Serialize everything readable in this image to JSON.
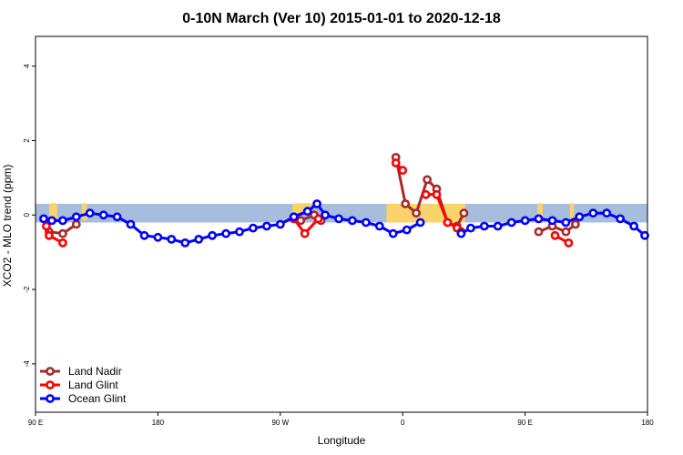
{
  "chart_data": {
    "type": "line",
    "title": "0-10N March (Ver 10)   2015-01-01 to 2020-12-18",
    "xlabel": "Longitude",
    "ylabel": "XCO2 - MLO trend (ppm)",
    "xlim": [
      -90,
      360
    ],
    "ylim": [
      -5.3,
      4.8
    ],
    "x_ticks": [
      {
        "value": -90,
        "label": "90 E"
      },
      {
        "value": 0,
        "label": "180"
      },
      {
        "value": 90,
        "label": "90 W"
      },
      {
        "value": 180,
        "label": "0"
      },
      {
        "value": 270,
        "label": "90 E"
      },
      {
        "value": 360,
        "label": "180"
      }
    ],
    "y_ticks": [
      {
        "value": 4,
        "label": "4"
      },
      {
        "value": 2,
        "label": "2"
      },
      {
        "value": 0,
        "label": "0"
      },
      {
        "value": -2,
        "label": "-2"
      },
      {
        "value": -4,
        "label": "-4"
      }
    ],
    "band": {
      "ymin": -0.2,
      "ymax": 0.3,
      "color": "#a7bddd"
    },
    "land_color": "#fbd36b",
    "land_blobs": [
      {
        "x0": -80,
        "x1": -74,
        "ymin": -0.15,
        "ymax": 0.32
      },
      {
        "x0": -56,
        "x1": -52,
        "ymin": -0.15,
        "ymax": 0.32
      },
      {
        "x0": 99,
        "x1": 113,
        "ymin": 0.05,
        "ymax": 0.32
      },
      {
        "x0": 168,
        "x1": 197,
        "ymin": -0.2,
        "ymax": 0.3
      },
      {
        "x0": 197,
        "x1": 226,
        "ymin": -0.2,
        "ymax": 0.3
      },
      {
        "x0": 279,
        "x1": 283,
        "ymin": -0.15,
        "ymax": 0.32
      },
      {
        "x0": 303,
        "x1": 306,
        "ymin": -0.15,
        "ymax": 0.32
      }
    ],
    "legend": {
      "position": "bottom-left"
    },
    "series": [
      {
        "name": "Land Nadir",
        "color": "#a52a2a",
        "segments": [
          [
            [
              -80,
              -0.45
            ],
            [
              -70,
              -0.5
            ],
            [
              -60,
              -0.25
            ]
          ],
          [
            [
              100,
              -0.05
            ],
            [
              105,
              -0.15
            ],
            [
              115,
              0.0
            ],
            [
              120,
              -0.15
            ]
          ],
          [
            [
              175,
              1.55
            ],
            [
              182,
              0.3
            ],
            [
              190,
              0.05
            ],
            [
              198,
              0.95
            ],
            [
              205,
              0.7
            ],
            [
              213,
              -0.2
            ],
            [
              220,
              -0.3
            ],
            [
              225,
              0.05
            ]
          ],
          [
            [
              280,
              -0.45
            ],
            [
              290,
              -0.3
            ],
            [
              300,
              -0.45
            ],
            [
              307,
              -0.25
            ]
          ]
        ]
      },
      {
        "name": "Land Glint",
        "color": "#ff0000",
        "segments": [
          [
            [
              -82,
              -0.3
            ],
            [
              -80,
              -0.55
            ],
            [
              -70,
              -0.75
            ]
          ],
          [
            [
              100,
              -0.1
            ],
            [
              108,
              -0.5
            ],
            [
              118,
              -0.1
            ]
          ],
          [
            [
              175,
              1.4
            ],
            [
              180,
              1.2
            ]
          ],
          [
            [
              197,
              0.55
            ],
            [
              205,
              0.55
            ],
            [
              213,
              -0.2
            ],
            [
              220,
              -0.35
            ],
            [
              223,
              -0.45
            ]
          ],
          [
            [
              292,
              -0.55
            ],
            [
              302,
              -0.75
            ]
          ]
        ]
      },
      {
        "name": "Ocean Glint",
        "color": "#0000ff",
        "segments": [
          [
            [
              -84,
              -0.1
            ],
            [
              -78,
              -0.15
            ],
            [
              -70,
              -0.15
            ],
            [
              -60,
              -0.05
            ],
            [
              -50,
              0.05
            ],
            [
              -40,
              0.0
            ],
            [
              -30,
              -0.05
            ],
            [
              -20,
              -0.25
            ],
            [
              -10,
              -0.55
            ],
            [
              0,
              -0.6
            ],
            [
              10,
              -0.65
            ],
            [
              20,
              -0.75
            ],
            [
              30,
              -0.65
            ],
            [
              40,
              -0.55
            ],
            [
              50,
              -0.5
            ],
            [
              60,
              -0.45
            ],
            [
              70,
              -0.35
            ],
            [
              80,
              -0.3
            ],
            [
              90,
              -0.25
            ],
            [
              100,
              -0.05
            ],
            [
              110,
              0.1
            ],
            [
              117,
              0.3
            ],
            [
              123,
              0.0
            ],
            [
              133,
              -0.1
            ],
            [
              143,
              -0.15
            ],
            [
              153,
              -0.2
            ],
            [
              163,
              -0.3
            ],
            [
              173,
              -0.5
            ],
            [
              183,
              -0.4
            ],
            [
              193,
              -0.2
            ]
          ],
          [
            [
              223,
              -0.5
            ],
            [
              230,
              -0.35
            ],
            [
              240,
              -0.3
            ],
            [
              250,
              -0.3
            ],
            [
              260,
              -0.2
            ],
            [
              270,
              -0.15
            ],
            [
              280,
              -0.1
            ],
            [
              290,
              -0.15
            ],
            [
              300,
              -0.2
            ],
            [
              310,
              -0.05
            ],
            [
              320,
              0.05
            ],
            [
              330,
              0.05
            ],
            [
              340,
              -0.1
            ],
            [
              350,
              -0.3
            ],
            [
              358,
              -0.55
            ]
          ]
        ]
      }
    ]
  }
}
